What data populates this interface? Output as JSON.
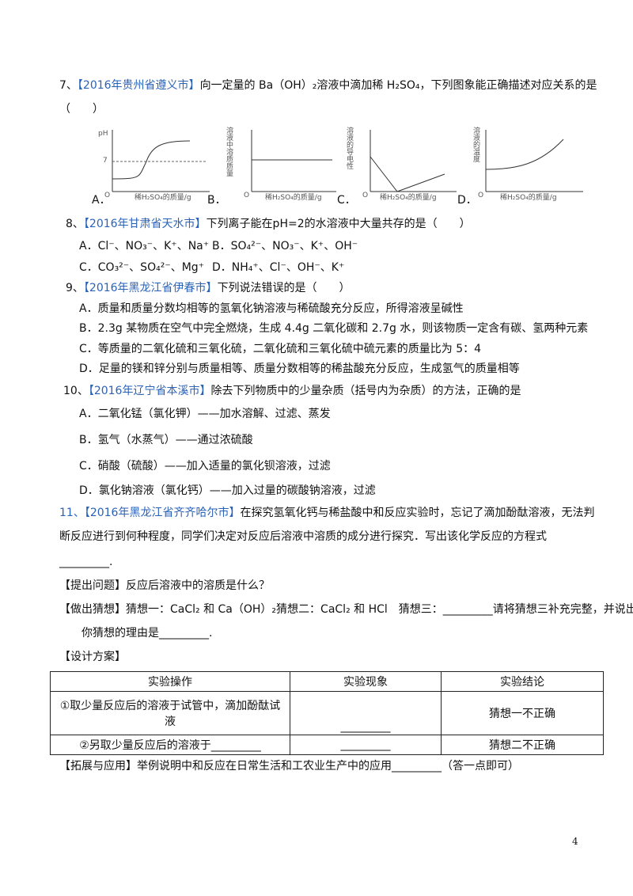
{
  "questions": [
    {
      "number": "7、",
      "source": "【2016年贵州省遵义市】",
      "stem": "向一定量的 Ba（OH）₂溶液中滴加稀 H₂SO₄，下列图象能正确描述对应关系的是（　　）",
      "options": [
        "A．",
        "B．",
        "C．",
        "D．"
      ],
      "graphs": [
        {
          "ylabel": "pH",
          "tick": "7",
          "origin": "O",
          "xlabel": "稀H₂SO₄的质量/g"
        },
        {
          "ylabel": "溶液中溶质质量",
          "origin": "O",
          "xlabel": "稀H₂SO₄的质量/g"
        },
        {
          "ylabel": "溶液的导电性",
          "origin": "O",
          "xlabel": "稀H₂SO₄的质量/g"
        },
        {
          "ylabel": "溶液的温度",
          "origin": "O",
          "xlabel": "稀H₂SO₄的质量/g"
        }
      ]
    },
    {
      "number": "8、",
      "source": "【2016年甘肃省天水市】",
      "stem": "下列离子能在pH=2的水溶液中大量共存的是（　　）",
      "options": [
        "A．Cl⁻、NO₃⁻、K⁺、Na⁺",
        "B．SO₄²⁻、NO₃⁻、K⁺、OH⁻",
        "C．CO₃²⁻、SO₄²⁻、Mg⁺",
        "D．NH₄⁺、Cl⁻、OH⁻、K⁺"
      ]
    },
    {
      "number": "9、",
      "source": "【2016年黑龙江省伊春市】",
      "stem": "下列说法错误的是（　　）",
      "options": [
        "A．质量和质量分数均相等的氢氧化钠溶液与稀硫酸充分反应，所得溶液呈碱性",
        "B．2.3g 某物质在空气中完全燃烧，生成 4.4g 二氧化碳和 2.7g 水，则该物质一定含有碳、氢两种元素",
        "C．等质量的二氧化硫和三氧化硫，二氧化硫和三氧化硫中硫元素的质量比为 5：4",
        "D．足量的镁和锌分别与质量相等、质量分数相等的稀盐酸充分反应，生成氢气的质量相等"
      ]
    },
    {
      "number": "10、",
      "source": "【2016年辽宁省本溪市】",
      "stem": "除去下列物质中的少量杂质（括号内为杂质）的方法，正确的是",
      "options": [
        "A．二氧化锰（氯化钾）——加水溶解、过滤、蒸发",
        "B．氢气（水蒸气）——通过浓硫酸",
        "C．硝酸（硫酸）——加入适量的氯化钡溶液，过滤",
        "D．氯化钠溶液（氯化钙）——加入过量的碳酸钠溶液，过滤"
      ]
    },
    {
      "number": "11、",
      "source": "【2016年黑龙江省齐齐哈尔市】",
      "stem": "在探究氢氧化钙与稀盐酸中和反应实验时，忘记了滴加酚酞溶液，无法判断反应进行到何种程度，同学们决定对反应后溶液中溶质的成分进行探究．写出该化学反应的方程式",
      "blank": "_________."
    }
  ],
  "question_line": "【提出问题】反应后溶液中的溶质是什么？",
  "guess_line": "【做出猜想】猜想一：CaCl₂ 和 Ca（OH）₂猜想二：CaCl₂ 和 HCl　猜想三：_________请将猜想三补充完整，并说出",
  "guess_reason": "你猜想的理由是_________.",
  "design_title": "【设计方案】",
  "table": {
    "header": [
      "实验操作",
      "实验现象",
      "实验结论"
    ],
    "rows": [
      [
        "①取少量反应后的溶液于试管中，滴加酚酞试液",
        "_________",
        "猜想一不正确"
      ],
      [
        "②另取少量反应后的溶液于_________",
        "_________",
        "猜想二不正确"
      ]
    ]
  },
  "extension_line": "【拓展与应用】举例说明中和反应在日常生活和工农业生产中的应用_________（答一点即可）",
  "page_number": "4"
}
